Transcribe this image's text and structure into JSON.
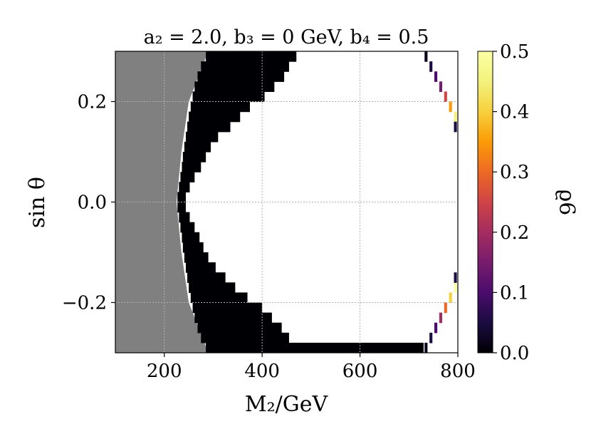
{
  "chart_data": {
    "type": "heatmap",
    "title": "a₂ = 2.0,  b₃ = 0  GeV,  b₄ = 0.5",
    "xlabel": "M₂/GeV",
    "ylabel": "sin θ",
    "xlim": [
      100,
      800
    ],
    "ylim": [
      -0.3,
      0.3
    ],
    "x_ticks": [
      200,
      400,
      600,
      800
    ],
    "x_tick_labels": [
      "200",
      "400",
      "600",
      "800"
    ],
    "y_ticks": [
      -0.2,
      0.0,
      0.2
    ],
    "y_tick_labels": [
      "−0.2",
      "0.0",
      "0.2"
    ],
    "grid": true,
    "colorbar": {
      "label": "ϱ6",
      "range": [
        0.0,
        0.5
      ],
      "ticks": [
        "0.0",
        "0.1",
        "0.2",
        "0.3",
        "0.4",
        "0.5"
      ],
      "colormap": "inferno"
    },
    "excluded_region": {
      "description": "grey",
      "color": "#808080",
      "boundary_x": [
        {
          "sin": -0.3,
          "m": 290
        },
        {
          "sin": -0.2,
          "m": 250
        },
        {
          "sin": -0.1,
          "m": 235
        },
        {
          "sin": 0.0,
          "m": 225
        },
        {
          "sin": 0.1,
          "m": 235
        },
        {
          "sin": 0.2,
          "m": 250
        },
        {
          "sin": 0.3,
          "m": 290
        }
      ]
    },
    "dark_band": {
      "value": 0.0,
      "color": "#000004",
      "rows": [
        {
          "sin": 0.29,
          "m_from": 285,
          "m_to": 470
        },
        {
          "sin": 0.27,
          "m_from": 275,
          "m_to": 455
        },
        {
          "sin": 0.25,
          "m_from": 268,
          "m_to": 445
        },
        {
          "sin": 0.23,
          "m_from": 262,
          "m_to": 425
        },
        {
          "sin": 0.21,
          "m_from": 258,
          "m_to": 405
        },
        {
          "sin": 0.19,
          "m_from": 254,
          "m_to": 375
        },
        {
          "sin": 0.17,
          "m_from": 250,
          "m_to": 355
        },
        {
          "sin": 0.15,
          "m_from": 247,
          "m_to": 335
        },
        {
          "sin": 0.13,
          "m_from": 244,
          "m_to": 310
        },
        {
          "sin": 0.11,
          "m_from": 241,
          "m_to": 295
        },
        {
          "sin": 0.09,
          "m_from": 238,
          "m_to": 285
        },
        {
          "sin": 0.07,
          "m_from": 236,
          "m_to": 275
        },
        {
          "sin": 0.05,
          "m_from": 233,
          "m_to": 262
        },
        {
          "sin": 0.03,
          "m_from": 230,
          "m_to": 252
        },
        {
          "sin": 0.01,
          "m_from": 227,
          "m_to": 244
        },
        {
          "sin": -0.01,
          "m_from": 227,
          "m_to": 244
        },
        {
          "sin": -0.03,
          "m_from": 230,
          "m_to": 252
        },
        {
          "sin": -0.05,
          "m_from": 233,
          "m_to": 262
        },
        {
          "sin": -0.07,
          "m_from": 236,
          "m_to": 272
        },
        {
          "sin": -0.09,
          "m_from": 238,
          "m_to": 280
        },
        {
          "sin": -0.11,
          "m_from": 241,
          "m_to": 290
        },
        {
          "sin": -0.13,
          "m_from": 244,
          "m_to": 305
        },
        {
          "sin": -0.15,
          "m_from": 247,
          "m_to": 325
        },
        {
          "sin": -0.17,
          "m_from": 250,
          "m_to": 345
        },
        {
          "sin": -0.19,
          "m_from": 254,
          "m_to": 370
        },
        {
          "sin": -0.21,
          "m_from": 258,
          "m_to": 400
        },
        {
          "sin": -0.23,
          "m_from": 262,
          "m_to": 420
        },
        {
          "sin": -0.25,
          "m_from": 268,
          "m_to": 440
        },
        {
          "sin": -0.27,
          "m_from": 275,
          "m_to": 455
        },
        {
          "sin": -0.29,
          "m_from": 285,
          "m_to": 730
        }
      ]
    },
    "right_edge_cells": [
      {
        "m": 735,
        "sin": 0.29,
        "value": 0.02
      },
      {
        "m": 745,
        "sin": 0.27,
        "value": 0.05
      },
      {
        "m": 755,
        "sin": 0.25,
        "value": 0.1
      },
      {
        "m": 765,
        "sin": 0.23,
        "value": 0.15
      },
      {
        "m": 775,
        "sin": 0.21,
        "value": 0.25
      },
      {
        "m": 785,
        "sin": 0.19,
        "value": 0.35
      },
      {
        "m": 795,
        "sin": 0.17,
        "value": 0.45
      },
      {
        "m": 795,
        "sin": 0.15,
        "value": 0.05
      },
      {
        "m": 735,
        "sin": -0.29,
        "value": 0.02
      },
      {
        "m": 745,
        "sin": -0.27,
        "value": 0.05
      },
      {
        "m": 755,
        "sin": -0.25,
        "value": 0.1
      },
      {
        "m": 765,
        "sin": -0.23,
        "value": 0.2
      },
      {
        "m": 775,
        "sin": -0.21,
        "value": 0.3
      },
      {
        "m": 785,
        "sin": -0.19,
        "value": 0.4
      },
      {
        "m": 795,
        "sin": -0.17,
        "value": 0.5
      },
      {
        "m": 795,
        "sin": -0.15,
        "value": 0.05
      }
    ]
  }
}
